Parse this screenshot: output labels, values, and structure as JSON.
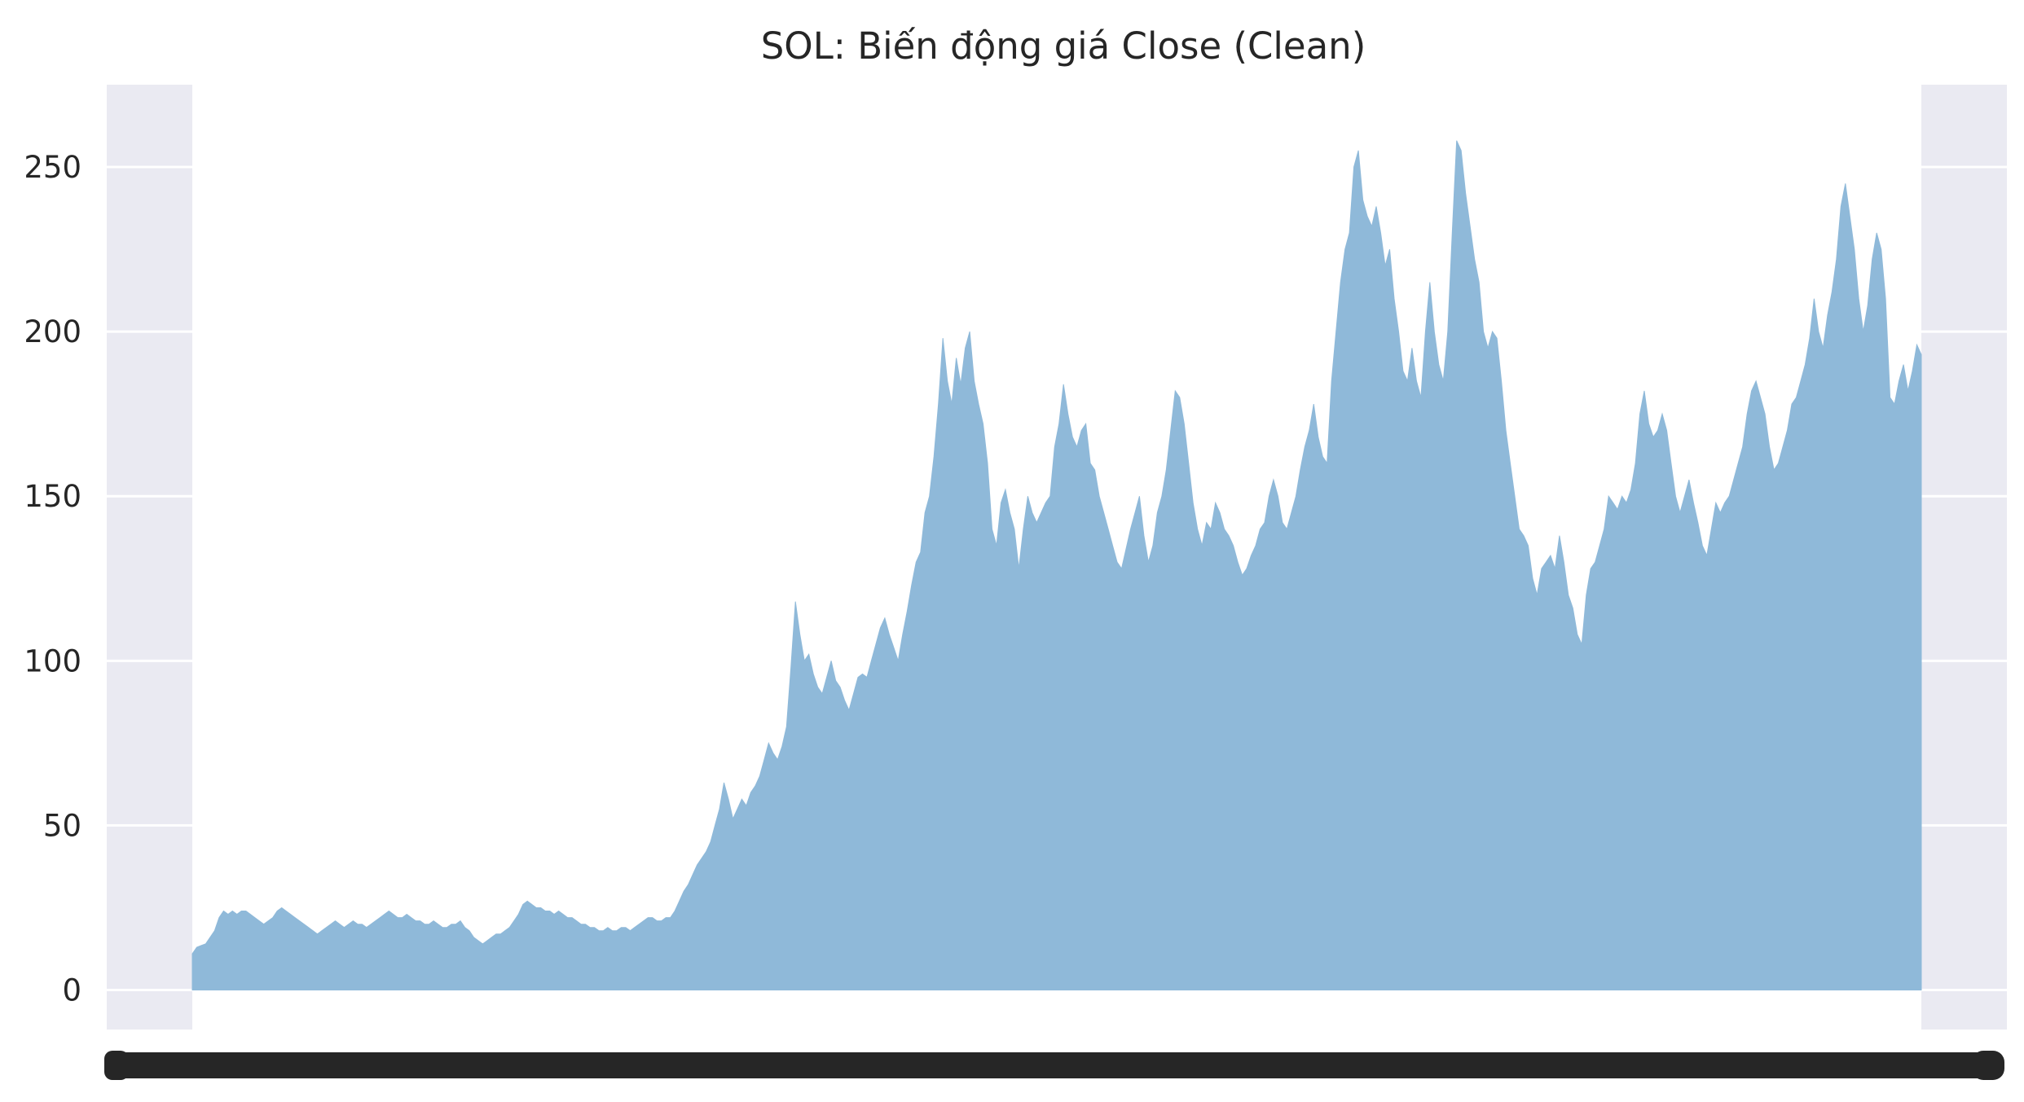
{
  "chart_data": {
    "type": "area",
    "title": "SOL: Biến động giá Close (Clean)",
    "xlabel": "",
    "ylabel": "",
    "ylim": [
      -12,
      275
    ],
    "yticks": [
      0,
      50,
      100,
      150,
      200,
      250
    ],
    "grid": true,
    "legend": "none",
    "x_ticks_overlapping": true,
    "series": [
      {
        "values": [
          11,
          13,
          13.5,
          14,
          16,
          18,
          22,
          24,
          23,
          24,
          23,
          24,
          24,
          23,
          22,
          21,
          20,
          21,
          22,
          24,
          25,
          24,
          23,
          22,
          21,
          20,
          19,
          18,
          17,
          18,
          19,
          20,
          21,
          20,
          19,
          20,
          21,
          20,
          20,
          19,
          20,
          21,
          22,
          23,
          24,
          23,
          22,
          22,
          23,
          22,
          21,
          21,
          20,
          20,
          21,
          20,
          19,
          19,
          20,
          20,
          21,
          19,
          18,
          16,
          15,
          14,
          15,
          16,
          17,
          17,
          18,
          19,
          21,
          23,
          26,
          27,
          26,
          25,
          25,
          24,
          24,
          23,
          24,
          23,
          22,
          22,
          21,
          20,
          20,
          19,
          19,
          18,
          18,
          19,
          18,
          18,
          19,
          19,
          18,
          19,
          20,
          21,
          22,
          22,
          21,
          21,
          22,
          22,
          24,
          27,
          30,
          32,
          35,
          38,
          40,
          42,
          45,
          50,
          55,
          63,
          58,
          52,
          55,
          58,
          56,
          60,
          62,
          65,
          70,
          75,
          72,
          70,
          74,
          80,
          98,
          118,
          108,
          100,
          102,
          96,
          92,
          90,
          95,
          100,
          94,
          92,
          88,
          85,
          90,
          95,
          96,
          95,
          100,
          105,
          110,
          113,
          108,
          104,
          100,
          108,
          115,
          123,
          130,
          133,
          145,
          150,
          162,
          178,
          198,
          185,
          178,
          192,
          184,
          195,
          200,
          185,
          178,
          172,
          160,
          140,
          135,
          148,
          152,
          145,
          140,
          128,
          140,
          150,
          145,
          142,
          145,
          148,
          150,
          165,
          172,
          184,
          175,
          168,
          165,
          170,
          172,
          160,
          158,
          150,
          145,
          140,
          135,
          130,
          128,
          134,
          140,
          145,
          150,
          138,
          130,
          135,
          145,
          150,
          158,
          170,
          182,
          180,
          172,
          160,
          148,
          140,
          135,
          142,
          140,
          148,
          145,
          140,
          138,
          135,
          130,
          126,
          128,
          132,
          135,
          140,
          142,
          150,
          155,
          150,
          142,
          140,
          145,
          150,
          158,
          165,
          170,
          178,
          168,
          162,
          160,
          185,
          200,
          215,
          225,
          230,
          250,
          255,
          240,
          235,
          232,
          238,
          230,
          220,
          225,
          210,
          200,
          188,
          185,
          195,
          185,
          180,
          200,
          215,
          200,
          190,
          185,
          200,
          230,
          258,
          255,
          242,
          232,
          222,
          215,
          200,
          195,
          200,
          198,
          185,
          170,
          160,
          150,
          140,
          138,
          135,
          125,
          120,
          128,
          130,
          132,
          128,
          138,
          130,
          120,
          116,
          108,
          105,
          120,
          128,
          130,
          135,
          140,
          150,
          148,
          146,
          150,
          148,
          152,
          160,
          175,
          182,
          172,
          168,
          170,
          175,
          170,
          160,
          150,
          145,
          150,
          155,
          148,
          142,
          135,
          132,
          140,
          148,
          145,
          148,
          150,
          155,
          160,
          165,
          175,
          182,
          185,
          180,
          175,
          165,
          158,
          160,
          165,
          170,
          178,
          180,
          185,
          190,
          198,
          210,
          200,
          195,
          205,
          212,
          222,
          238,
          245,
          235,
          225,
          210,
          200,
          208,
          222,
          230,
          225,
          210,
          180,
          178,
          185,
          190,
          182,
          188,
          196,
          193
        ]
      }
    ],
    "colors": {
      "fill": "#8fb9d9",
      "background": "#eaeaf2",
      "grid": "#ffffff",
      "text": "#262626"
    }
  }
}
